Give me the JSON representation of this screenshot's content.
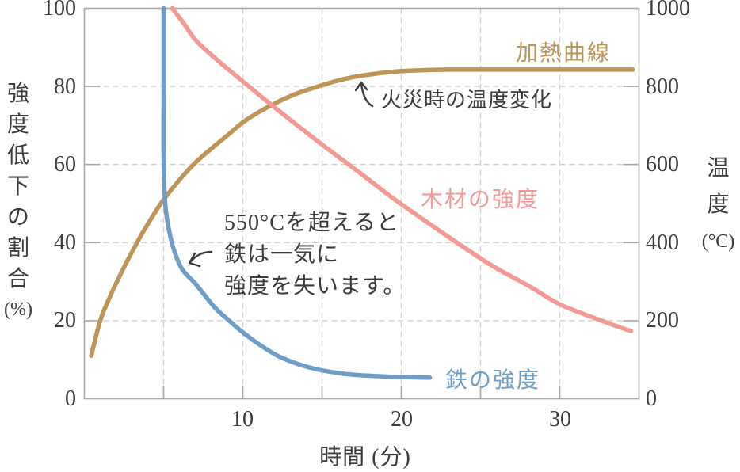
{
  "colors": {
    "background": "#ffffff",
    "text": "#3b3b3b",
    "axis": "#a9a9a9",
    "grid": "#cfcfcf",
    "heating": "#bd9557",
    "wood": "#f49a96",
    "steel": "#6e9ec8"
  },
  "chart_data": {
    "type": "line",
    "title": "",
    "xlabel": "時間 (分)",
    "ylabel_left": "強度低下の割合(%)",
    "ylabel_left_chars": [
      "強",
      "度",
      "低",
      "下",
      "の",
      "割",
      "合",
      "(%)"
    ],
    "ylabel_right": "温度(°C)",
    "ylabel_right_chars": [
      "温",
      "度",
      "(°C)"
    ],
    "xlim": [
      0,
      35
    ],
    "ylim_left": [
      0,
      100
    ],
    "ylim_right": [
      0,
      1000
    ],
    "x_ticks_labeled": [
      10,
      20,
      30
    ],
    "x_ticks_all": [
      5,
      10,
      15,
      20,
      25,
      30
    ],
    "y_ticks_left": [
      0,
      20,
      40,
      60,
      80,
      100
    ],
    "y_ticks_right": [
      0,
      200,
      400,
      600,
      800,
      1000
    ],
    "grid": {
      "style": "dashed",
      "vertical_at": [
        5,
        10,
        15,
        20,
        25,
        30
      ],
      "horizontal_at_left_pct": [
        20,
        40,
        60,
        80
      ]
    },
    "legend_position": "labels-on-chart",
    "series": [
      {
        "key": "heating",
        "name": "加熱曲線",
        "axis": "right",
        "unit": "°C",
        "color": "#bd9557",
        "points": [
          [
            0.43,
            110
          ],
          [
            1.0,
            200
          ],
          [
            1.6,
            260
          ],
          [
            2.2,
            312
          ],
          [
            2.9,
            368
          ],
          [
            3.6,
            420
          ],
          [
            4.3,
            467
          ],
          [
            5.0,
            510
          ],
          [
            6.2,
            570
          ],
          [
            7.2,
            612
          ],
          [
            8.2,
            647
          ],
          [
            9.1,
            677
          ],
          [
            10,
            708
          ],
          [
            11,
            734
          ],
          [
            12.1,
            758
          ],
          [
            13.3,
            780
          ],
          [
            14.6,
            798
          ],
          [
            16,
            815
          ],
          [
            17.1,
            825
          ],
          [
            18.5,
            833
          ],
          [
            19.6,
            838
          ],
          [
            21,
            841
          ],
          [
            23,
            843
          ],
          [
            26,
            843
          ],
          [
            30,
            843
          ],
          [
            34.6,
            843
          ]
        ]
      },
      {
        "key": "wood",
        "name": "木材の強度",
        "axis": "left",
        "unit": "%",
        "color": "#f49a96",
        "points": [
          [
            5.55,
            100
          ],
          [
            6.3,
            96
          ],
          [
            7.1,
            91.5
          ],
          [
            8.6,
            86
          ],
          [
            10,
            81.3
          ],
          [
            12.1,
            74.3
          ],
          [
            15,
            65.1
          ],
          [
            17.6,
            57.2
          ],
          [
            19.6,
            51
          ],
          [
            22.6,
            42.5
          ],
          [
            25.6,
            34.4
          ],
          [
            28,
            29
          ],
          [
            30,
            24.2
          ],
          [
            32.3,
            20.5
          ],
          [
            34.5,
            17.3
          ]
        ]
      },
      {
        "key": "steel",
        "name": "鉄の強度",
        "axis": "left",
        "unit": "%",
        "color": "#6e9ec8",
        "points": [
          [
            5,
            100
          ],
          [
            5,
            80
          ],
          [
            5,
            62
          ],
          [
            5.1,
            50
          ],
          [
            5.35,
            43
          ],
          [
            5.7,
            37.5
          ],
          [
            6.2,
            33
          ],
          [
            7,
            29.5
          ],
          [
            8.2,
            23.5
          ],
          [
            9,
            20.5
          ],
          [
            10,
            17
          ],
          [
            11,
            14
          ],
          [
            12.2,
            11
          ],
          [
            13.4,
            9
          ],
          [
            14.6,
            7.6
          ],
          [
            16,
            6.6
          ],
          [
            17.1,
            6.1
          ],
          [
            18.5,
            5.8
          ],
          [
            19.6,
            5.6
          ],
          [
            21.8,
            5.4
          ]
        ]
      }
    ],
    "annotations": [
      {
        "key": "heating_note",
        "text": "火災時の温度変化",
        "arrow": "curved-arrow-pointing-up-to-heating-curve"
      },
      {
        "key": "steel_note",
        "lines": [
          "550°Cを超えると",
          "鉄は一気に",
          "強度を失います。"
        ],
        "arrow": "curved-arrow-pointing-down-left-to-steel-curve"
      }
    ]
  }
}
